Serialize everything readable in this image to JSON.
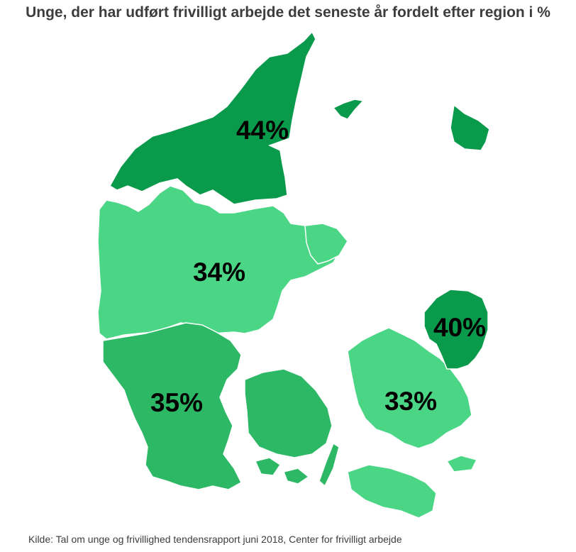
{
  "title": "Unge, der har udført frivilligt arbejde det seneste år fordelt efter region i %",
  "source": "Kilde: Tal om unge og frivillighed tendensrapport juni 2018, Center for frivilligt arbejde",
  "regions": {
    "nordjylland": {
      "value": 44,
      "label": "44%",
      "color": "#0a9a4b"
    },
    "midtjylland": {
      "value": 34,
      "label": "34%",
      "color": "#4ad685"
    },
    "syddanmark": {
      "value": 35,
      "label": "35%",
      "color": "#2db866"
    },
    "sjaelland": {
      "value": 33,
      "label": "33%",
      "color": "#4ad685"
    },
    "hovedstaden": {
      "value": 40,
      "label": "40%",
      "color": "#0a9a4b"
    }
  }
}
